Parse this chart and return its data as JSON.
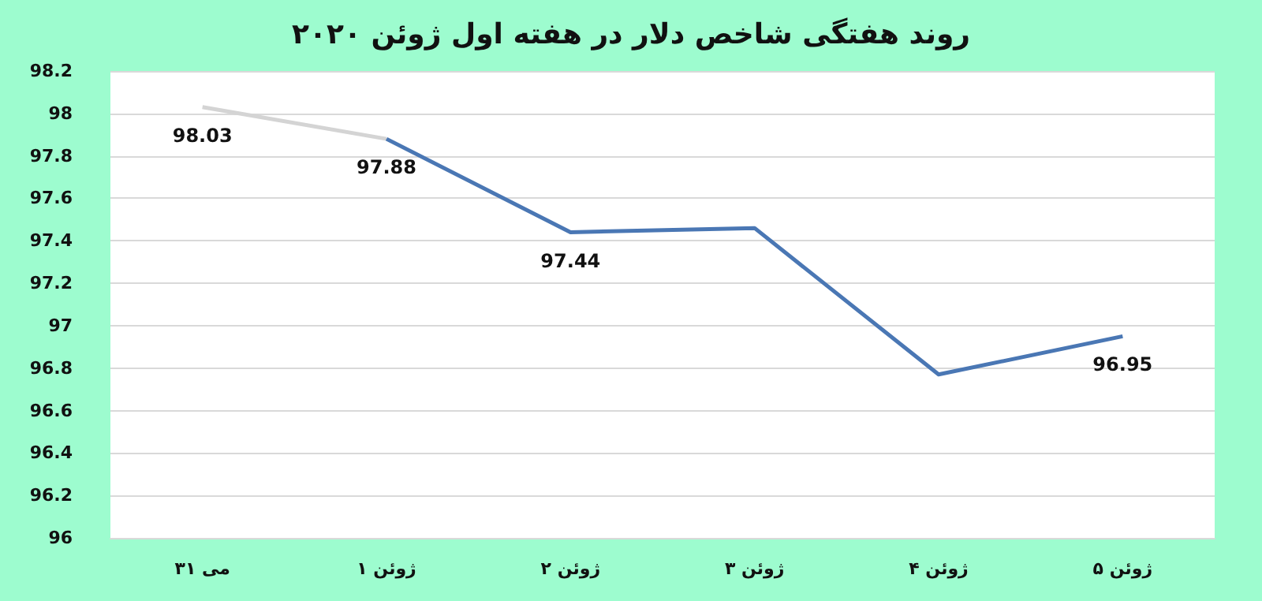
{
  "chart_data": {
    "type": "line",
    "title": "روند هفتگی شاخص دلار در هفته اول ژوئن ۲۰۲۰",
    "categories": [
      "۳۱ می",
      "۱ ژوئن",
      "۲ ژوئن",
      "۳ ژوئن",
      "۴ ژوئن",
      "۵ ژوئن"
    ],
    "series": [
      {
        "color": "#d4d4d4",
        "values": [
          98.03,
          97.88,
          null,
          null,
          null,
          null
        ],
        "value_labels": [
          "98.03",
          null,
          null,
          null,
          null,
          null
        ]
      },
      {
        "color": "#4a77b4",
        "values": [
          null,
          97.88,
          97.44,
          97.46,
          96.77,
          96.95
        ],
        "value_labels": [
          null,
          "97.88",
          "97.44",
          null,
          null,
          "96.95"
        ]
      }
    ],
    "ylim": [
      96,
      98.2
    ],
    "yticks": [
      96,
      96.2,
      96.4,
      96.6,
      96.8,
      97,
      97.2,
      97.4,
      97.6,
      97.8,
      98,
      98.2
    ],
    "grid": "y",
    "marker": "none",
    "line_style": "solid"
  }
}
